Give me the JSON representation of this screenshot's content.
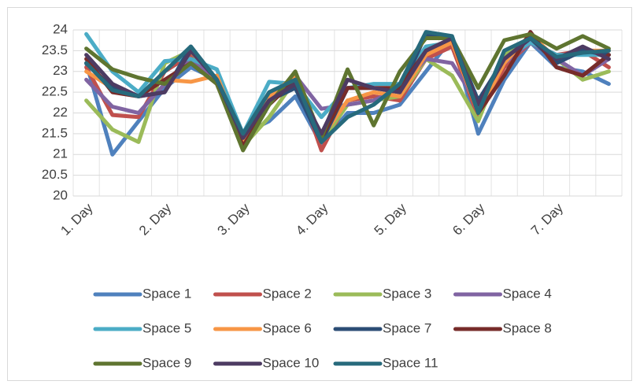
{
  "chart_data": {
    "type": "line",
    "categories": [
      "1. Day",
      null,
      null,
      "2. Day",
      null,
      null,
      "3. Day",
      null,
      null,
      "4. Day",
      null,
      null,
      "5. Day",
      null,
      null,
      "6. Day",
      null,
      null,
      "7. Day",
      null,
      null
    ],
    "ylim": [
      20,
      24
    ],
    "yticks": [
      20,
      {
        "value": 20.5,
        "label": "20.5"
      },
      21,
      {
        "value": 21.5,
        "label": "21.5"
      },
      22,
      {
        "value": 22.5,
        "label": "22.5"
      },
      23,
      {
        "value": 23.5,
        "label": "23.5"
      },
      24
    ],
    "grid": true,
    "legend": "bottom",
    "series": [
      {
        "name": "Space 1",
        "color": "#4f81bd",
        "values": [
          23.2,
          21.0,
          21.8,
          22.6,
          23.1,
          22.8,
          21.5,
          21.8,
          22.4,
          21.25,
          22.0,
          22.0,
          22.2,
          23.0,
          23.8,
          21.5,
          22.8,
          23.7,
          23.1,
          23.0,
          22.7
        ]
      },
      {
        "name": "Space 2",
        "color": "#c0504d",
        "values": [
          23.1,
          21.95,
          21.9,
          23.0,
          23.4,
          22.7,
          21.4,
          22.3,
          22.9,
          21.1,
          22.3,
          22.4,
          22.3,
          23.3,
          23.6,
          21.9,
          23.1,
          23.7,
          23.4,
          23.5,
          23.1
        ]
      },
      {
        "name": "Space 3",
        "color": "#9bbb59",
        "values": [
          22.3,
          21.6,
          21.3,
          23.2,
          23.5,
          22.7,
          21.2,
          21.9,
          22.8,
          21.3,
          22.2,
          22.3,
          22.4,
          23.3,
          22.9,
          21.8,
          23.4,
          23.7,
          23.3,
          22.8,
          23.0
        ]
      },
      {
        "name": "Space 4",
        "color": "#8064a2",
        "values": [
          22.8,
          22.15,
          22.0,
          22.7,
          23.3,
          22.8,
          21.5,
          22.4,
          22.9,
          22.1,
          22.2,
          22.3,
          22.6,
          23.3,
          23.2,
          22.2,
          23.2,
          23.7,
          23.3,
          22.9,
          23.3
        ]
      },
      {
        "name": "Space 5",
        "color": "#4bacc6",
        "values": [
          23.9,
          23.0,
          22.5,
          23.25,
          23.3,
          23.05,
          21.5,
          22.75,
          22.7,
          21.9,
          22.6,
          22.7,
          22.7,
          23.6,
          23.7,
          22.1,
          23.3,
          23.7,
          23.4,
          23.4,
          23.4
        ]
      },
      {
        "name": "Space 6",
        "color": "#f79646",
        "values": [
          23.0,
          22.6,
          22.4,
          22.8,
          22.75,
          22.9,
          21.3,
          22.4,
          22.9,
          21.4,
          22.3,
          22.5,
          22.4,
          23.4,
          23.7,
          22.0,
          23.2,
          23.9,
          23.3,
          23.5,
          23.5
        ]
      },
      {
        "name": "Space 7",
        "color": "#2c4d75",
        "values": [
          23.2,
          22.6,
          22.4,
          22.5,
          23.6,
          22.8,
          21.4,
          22.3,
          22.6,
          21.3,
          22.6,
          22.6,
          22.5,
          23.9,
          23.8,
          22.3,
          23.3,
          23.8,
          23.2,
          23.5,
          23.4
        ]
      },
      {
        "name": "Space 8",
        "color": "#772c2a",
        "values": [
          23.3,
          22.5,
          22.4,
          22.8,
          23.2,
          22.7,
          21.2,
          22.2,
          22.8,
          21.4,
          22.6,
          22.6,
          22.6,
          23.5,
          23.8,
          22.0,
          22.9,
          23.95,
          23.1,
          22.9,
          23.4
        ]
      },
      {
        "name": "Space 9",
        "color": "#5f7530",
        "values": [
          23.55,
          23.05,
          22.85,
          22.7,
          23.2,
          22.7,
          21.1,
          22.2,
          23.0,
          21.4,
          23.05,
          21.7,
          23.0,
          23.8,
          23.8,
          22.6,
          23.75,
          23.9,
          23.55,
          23.85,
          23.55
        ]
      },
      {
        "name": "Space 10",
        "color": "#4d3b62",
        "values": [
          23.4,
          22.7,
          22.4,
          22.5,
          23.5,
          22.8,
          21.4,
          22.3,
          22.7,
          21.5,
          22.8,
          22.6,
          22.5,
          23.5,
          23.8,
          22.2,
          23.3,
          23.8,
          23.3,
          23.6,
          23.3
        ]
      },
      {
        "name": "Space 11",
        "color": "#276a7c",
        "values": [
          23.2,
          22.55,
          22.4,
          23.0,
          23.6,
          22.8,
          21.5,
          22.5,
          22.8,
          21.3,
          21.9,
          22.2,
          22.7,
          23.95,
          23.85,
          22.0,
          23.5,
          23.8,
          23.35,
          23.45,
          23.5
        ]
      }
    ]
  }
}
